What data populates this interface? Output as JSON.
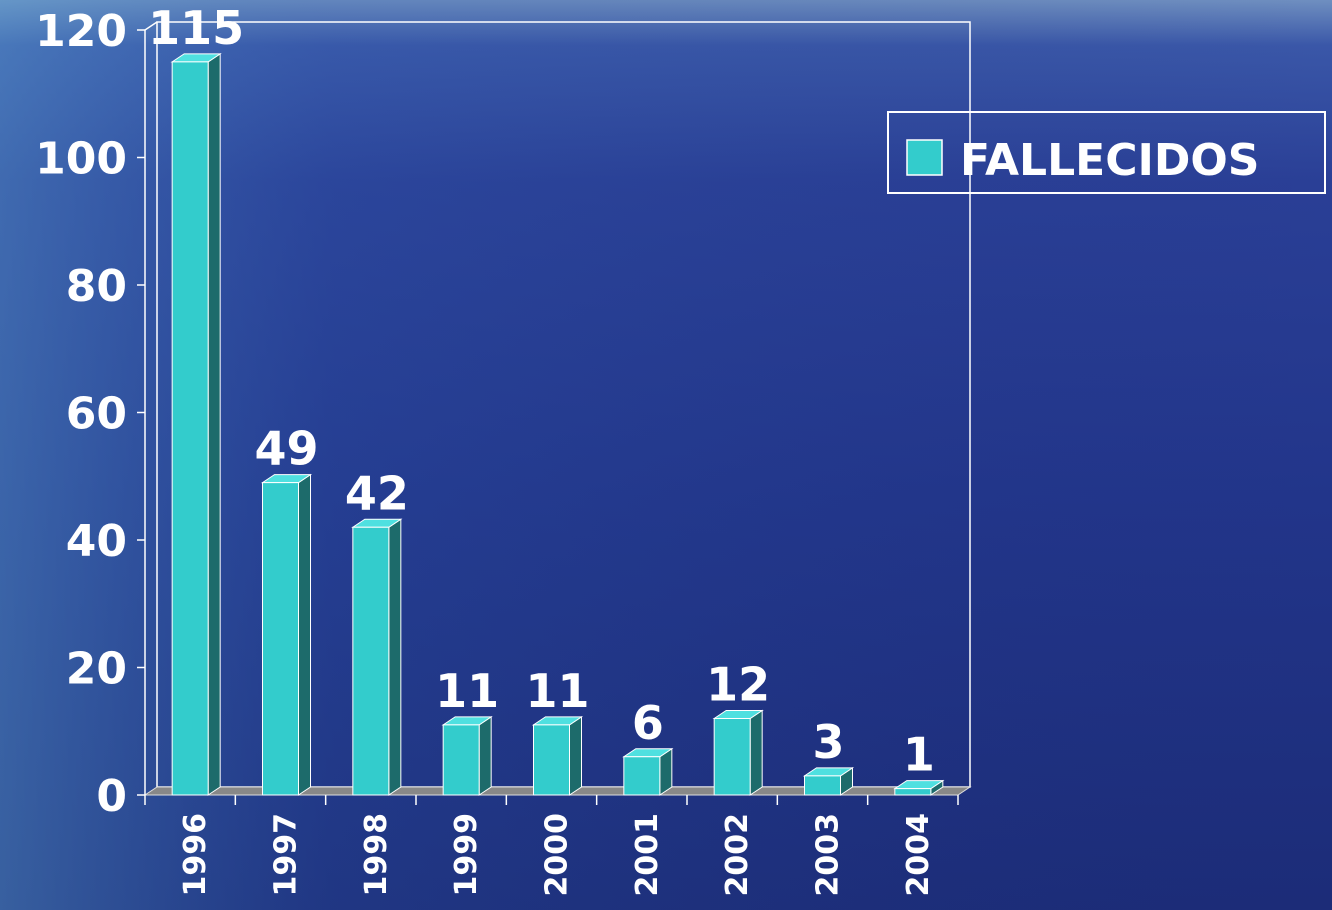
{
  "chart_data": {
    "type": "bar",
    "categories": [
      "1996",
      "1997",
      "1998",
      "1999",
      "2000",
      "2001",
      "2002",
      "2003",
      "2004"
    ],
    "series": [
      {
        "name": "FALLECIDOS",
        "color": "#33cccc",
        "values": [
          115,
          49,
          42,
          11,
          11,
          6,
          12,
          3,
          1
        ]
      }
    ],
    "ylim": [
      0,
      120
    ],
    "yticks": [
      0,
      20,
      40,
      60,
      80,
      100,
      120
    ],
    "legend": "right"
  }
}
